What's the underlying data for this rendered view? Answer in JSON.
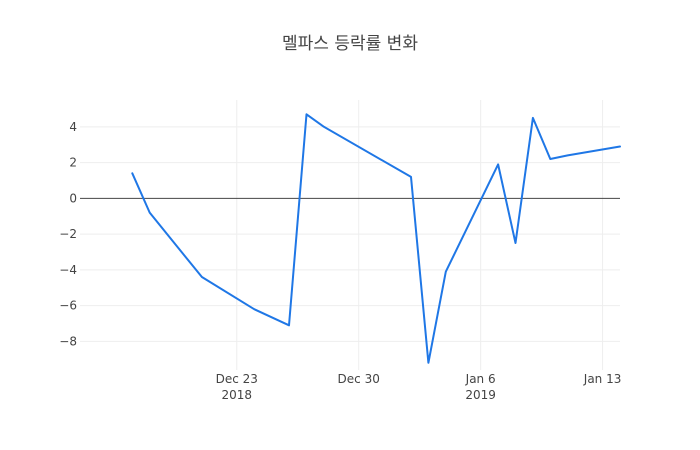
{
  "chart_data": {
    "type": "line",
    "title": "멜파스 등락률 변화",
    "xlabel": "",
    "ylabel": "",
    "x_range": [
      "2018-12-14",
      "2019-01-14"
    ],
    "ylim": [
      -9.6,
      5.5
    ],
    "grid": true,
    "zero_line": true,
    "x_ticks": [
      {
        "date": "2018-12-23",
        "label": "Dec 23",
        "sublabel": "2018"
      },
      {
        "date": "2018-12-30",
        "label": "Dec 30",
        "sublabel": ""
      },
      {
        "date": "2019-01-06",
        "label": "Jan 6",
        "sublabel": "2019"
      },
      {
        "date": "2019-01-13",
        "label": "Jan 13",
        "sublabel": ""
      }
    ],
    "y_ticks": [
      {
        "value": 4,
        "label": "4"
      },
      {
        "value": 2,
        "label": "2"
      },
      {
        "value": 0,
        "label": "0"
      },
      {
        "value": -2,
        "label": "−2"
      },
      {
        "value": -4,
        "label": "−4"
      },
      {
        "value": -6,
        "label": "−6"
      },
      {
        "value": -8,
        "label": "−8"
      }
    ],
    "series": [
      {
        "color": "#1f77e6",
        "x": [
          "2018-12-17",
          "2018-12-18",
          "2018-12-19",
          "2018-12-20",
          "2018-12-21",
          "2018-12-24",
          "2018-12-26",
          "2018-12-27",
          "2018-12-28",
          "2019-01-02",
          "2019-01-03",
          "2019-01-04",
          "2019-01-07",
          "2019-01-08",
          "2019-01-09",
          "2019-01-10",
          "2019-01-11",
          "2019-01-14"
        ],
        "y": [
          1.4,
          -0.8,
          -2.0,
          -3.2,
          -4.4,
          -6.2,
          -7.1,
          4.7,
          4.0,
          1.2,
          -9.2,
          -4.1,
          1.9,
          -2.5,
          4.5,
          2.2,
          2.4,
          2.9
        ]
      }
    ]
  }
}
